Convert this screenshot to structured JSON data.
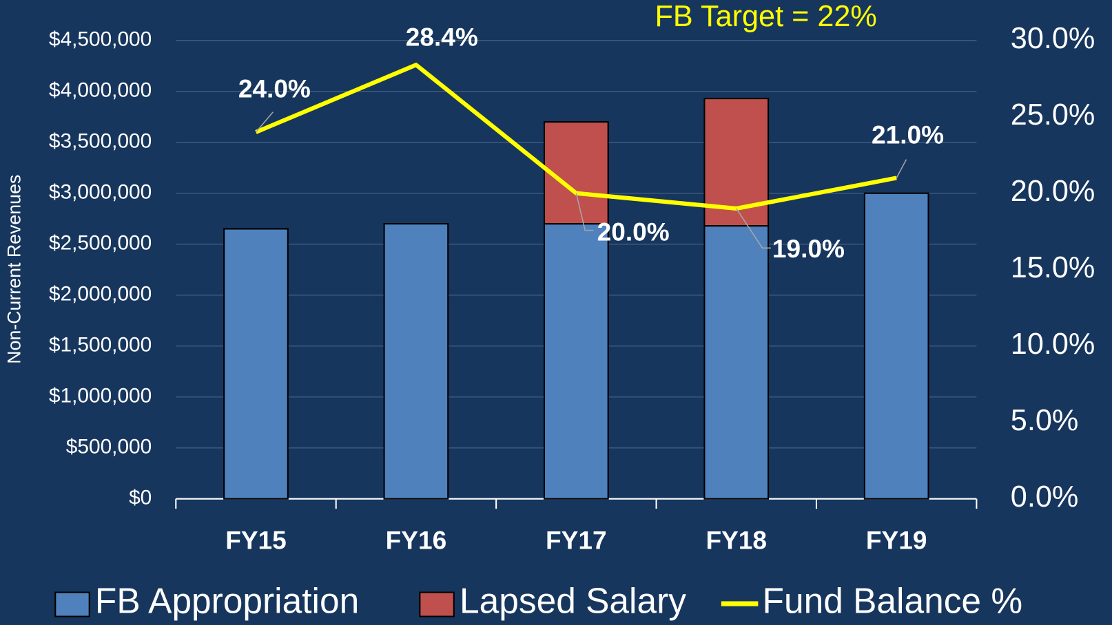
{
  "chart_data": {
    "type": "bar",
    "annotation": "FB Target = 22%",
    "ylabel": "Non-Current Revenues",
    "categories": [
      "FY15",
      "FY16",
      "FY17",
      "FY18",
      "FY19"
    ],
    "series": [
      {
        "name": "FB Appropriation",
        "color": "#4f81bd",
        "values": [
          2650000,
          2700000,
          2700000,
          2680000,
          3000000
        ]
      },
      {
        "name": "Lapsed Salary",
        "color": "#c0504d",
        "values": [
          null,
          null,
          1000000,
          1250000,
          null
        ]
      },
      {
        "name": "Fund Balance %",
        "color": "#ffff00",
        "type": "line",
        "axis": "y2",
        "values": [
          24.0,
          28.4,
          20.0,
          19.0,
          21.0
        ],
        "value_labels": [
          "24.0%",
          "28.4%",
          "20.0%",
          "19.0%",
          "21.0%"
        ]
      }
    ],
    "ylim": [
      0,
      4500000
    ],
    "yticks": [
      {
        "value": 0,
        "label": "$0"
      },
      {
        "value": 500000,
        "label": "$500,000"
      },
      {
        "value": 1000000,
        "label": "$1,000,000"
      },
      {
        "value": 1500000,
        "label": "$1,500,000"
      },
      {
        "value": 2000000,
        "label": "$2,000,000"
      },
      {
        "value": 2500000,
        "label": "$2,500,000"
      },
      {
        "value": 3000000,
        "label": "$3,000,000"
      },
      {
        "value": 3500000,
        "label": "$3,500,000"
      },
      {
        "value": 4000000,
        "label": "$4,000,000"
      },
      {
        "value": 4500000,
        "label": "$4,500,000"
      }
    ],
    "y2lim": [
      0,
      30
    ],
    "y2ticks": [
      {
        "value": 0,
        "label": "0.0%"
      },
      {
        "value": 5,
        "label": "5.0%"
      },
      {
        "value": 10,
        "label": "10.0%"
      },
      {
        "value": 15,
        "label": "15.0%"
      },
      {
        "value": 20,
        "label": "20.0%"
      },
      {
        "value": 25,
        "label": "25.0%"
      },
      {
        "value": 30,
        "label": "30.0%"
      }
    ],
    "grid": true
  }
}
